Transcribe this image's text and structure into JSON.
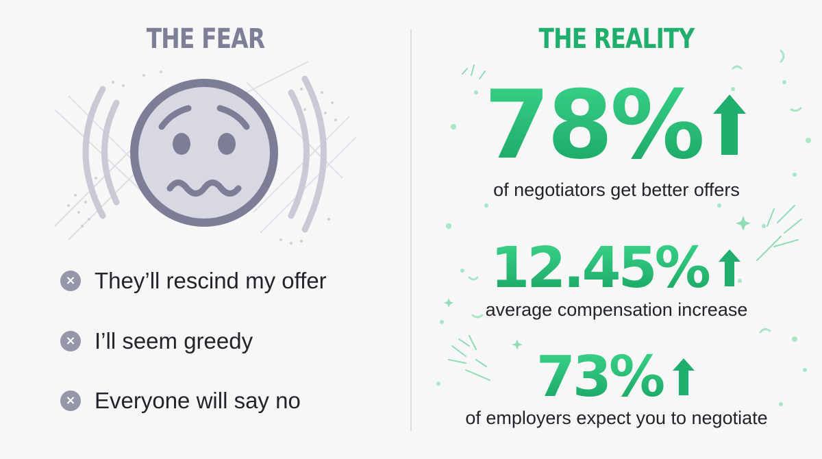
{
  "fear": {
    "heading": "THE FEAR",
    "face_icon": "worried-face-icon",
    "items": [
      {
        "icon": "x-circle-icon",
        "glyph": "×",
        "text": "They’ll rescind my offer"
      },
      {
        "icon": "x-circle-icon",
        "glyph": "×",
        "text": "I’ll seem greedy"
      },
      {
        "icon": "x-circle-icon",
        "glyph": "×",
        "text": "Everyone will say no"
      }
    ]
  },
  "reality": {
    "heading": "THE REALITY",
    "stats": [
      {
        "value": "78%",
        "label": "of negotiators get better offers",
        "icon": "up-arrow-icon"
      },
      {
        "value": "12.45%",
        "label": "average compensation increase",
        "icon": "up-arrow-icon"
      },
      {
        "value": "73%",
        "label": "of employers expect you to negotiate",
        "icon": "up-arrow-icon"
      }
    ]
  },
  "colors": {
    "fear_gray": "#7d7f96",
    "reality_green": "#1fae6b",
    "background": "#f7f7f8"
  }
}
